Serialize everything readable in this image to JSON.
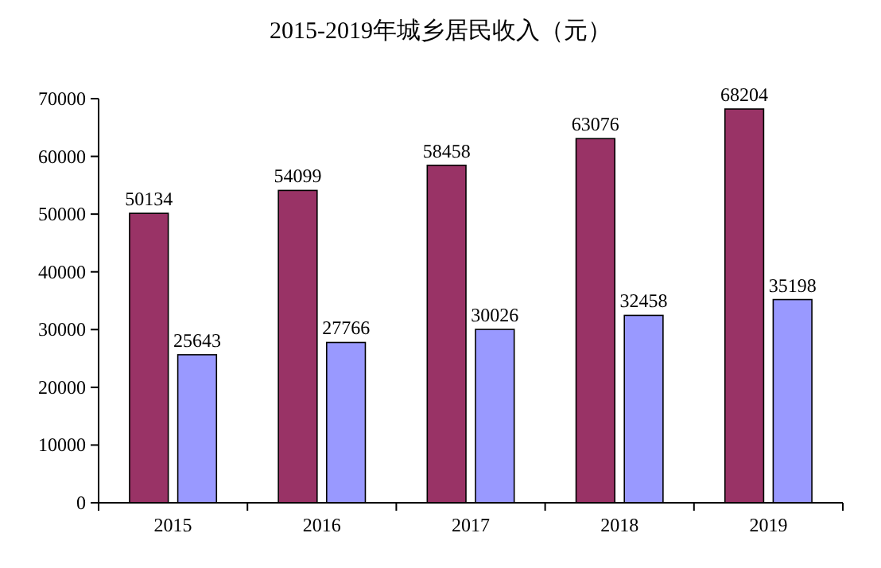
{
  "chart_data": {
    "type": "bar",
    "title": "2015-2019年城乡居民收入（元）",
    "categories": [
      "2015",
      "2016",
      "2017",
      "2018",
      "2019"
    ],
    "series": [
      {
        "color": "#993366",
        "values": [
          50134,
          54099,
          58458,
          63076,
          68204
        ]
      },
      {
        "color": "#9999ff",
        "values": [
          25643,
          27766,
          30026,
          32458,
          35198
        ]
      }
    ],
    "ylim": [
      0,
      70000
    ],
    "yticks": [
      0,
      10000,
      20000,
      30000,
      40000,
      50000,
      60000,
      70000
    ],
    "data_labels": true
  }
}
